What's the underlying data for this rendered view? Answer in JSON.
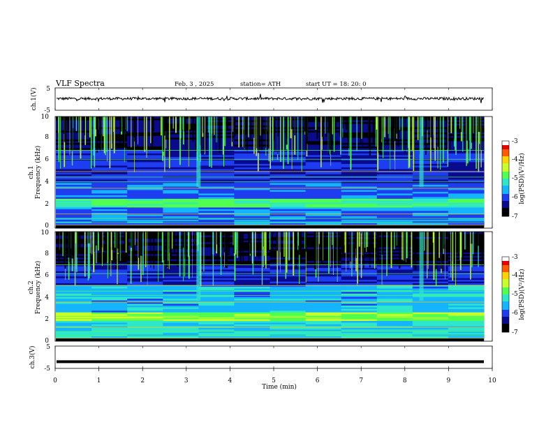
{
  "header": {
    "title": "VLF  Spectra",
    "date": "Feb. 3  , 2025",
    "station": "station= ATH",
    "start": "start  UT  =   18: 20: 0"
  },
  "chart_data": [
    {
      "type": "line",
      "panel": "ch1-voltage",
      "ylabel": "ch.1(V)",
      "ylim": [
        -5,
        5
      ],
      "yticks": [
        "5",
        "-5"
      ],
      "xlim": [
        0,
        10
      ],
      "series": [
        {
          "values_approx_level": 0.2
        }
      ]
    },
    {
      "type": "heatmap",
      "panel": "ch1-spectrogram",
      "ylabel": "Frequency (kHz)",
      "channel_label": "ch.1",
      "ylim": [
        0,
        10
      ],
      "yticks": [
        "0",
        "2",
        "4",
        "6",
        "8",
        "10"
      ],
      "xlim": [
        0,
        10
      ],
      "colorbar": {
        "label": "log(PSD)(V²/Hz)",
        "ticks": [
          "-3",
          "-4",
          "-5",
          "-6",
          "-7"
        ],
        "range": [
          -7,
          -3
        ]
      }
    },
    {
      "type": "heatmap",
      "panel": "ch2-spectrogram",
      "ylabel": "Frequency (kHz)",
      "channel_label": "ch.2",
      "ylim": [
        0,
        10
      ],
      "yticks": [
        "0",
        "2",
        "4",
        "6",
        "8",
        "10"
      ],
      "xlim": [
        0,
        10
      ],
      "colorbar": {
        "label": "log(PSD)(V²/Hz)",
        "ticks": [
          "-3",
          "-4",
          "-5",
          "-6",
          "-7"
        ],
        "range": [
          -7,
          -3
        ]
      }
    },
    {
      "type": "line",
      "panel": "ch3-voltage",
      "ylabel": "ch.3(V)",
      "ylim": [
        -5,
        5
      ],
      "yticks": [
        "5",
        "-5"
      ],
      "xlim": [
        0,
        10
      ],
      "series": [
        {
          "values_approx_level": -2
        }
      ]
    }
  ],
  "xaxis": {
    "label": "Time  (min)",
    "ticks": [
      "0",
      "1",
      "2",
      "3",
      "4",
      "5",
      "6",
      "7",
      "8",
      "9",
      "10"
    ]
  },
  "colors": {
    "colormap": [
      "#000000",
      "#0a0a8c",
      "#1e3cf0",
      "#14b4ff",
      "#2ee6c8",
      "#50ff50",
      "#c8ff28",
      "#ffd200",
      "#ff5a00",
      "#e60000",
      "#ffffff"
    ]
  }
}
